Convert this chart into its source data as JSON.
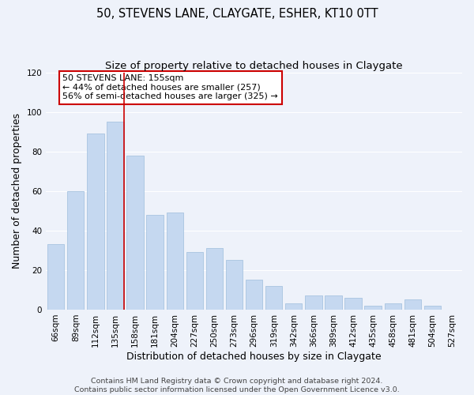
{
  "title": "50, STEVENS LANE, CLAYGATE, ESHER, KT10 0TT",
  "subtitle": "Size of property relative to detached houses in Claygate",
  "xlabel": "Distribution of detached houses by size in Claygate",
  "ylabel": "Number of detached properties",
  "categories": [
    "66sqm",
    "89sqm",
    "112sqm",
    "135sqm",
    "158sqm",
    "181sqm",
    "204sqm",
    "227sqm",
    "250sqm",
    "273sqm",
    "296sqm",
    "319sqm",
    "342sqm",
    "366sqm",
    "389sqm",
    "412sqm",
    "435sqm",
    "458sqm",
    "481sqm",
    "504sqm",
    "527sqm"
  ],
  "values": [
    33,
    60,
    89,
    95,
    78,
    48,
    49,
    29,
    31,
    25,
    15,
    12,
    3,
    7,
    7,
    6,
    2,
    3,
    5,
    2,
    0
  ],
  "bar_color": "#c5d8f0",
  "bar_edge_color": "#a8c4e0",
  "highlight_index": 3,
  "highlight_line_color": "#cc0000",
  "ylim": [
    0,
    120
  ],
  "yticks": [
    0,
    20,
    40,
    60,
    80,
    100,
    120
  ],
  "annotation_text": "50 STEVENS LANE: 155sqm\n← 44% of detached houses are smaller (257)\n56% of semi-detached houses are larger (325) →",
  "annotation_box_color": "#ffffff",
  "annotation_box_edge": "#cc0000",
  "footer_line1": "Contains HM Land Registry data © Crown copyright and database right 2024.",
  "footer_line2": "Contains public sector information licensed under the Open Government Licence v3.0.",
  "background_color": "#eef2fa",
  "grid_color": "#ffffff",
  "title_fontsize": 10.5,
  "subtitle_fontsize": 9.5,
  "axis_label_fontsize": 9,
  "tick_fontsize": 7.5,
  "annotation_fontsize": 8,
  "footer_fontsize": 6.8
}
